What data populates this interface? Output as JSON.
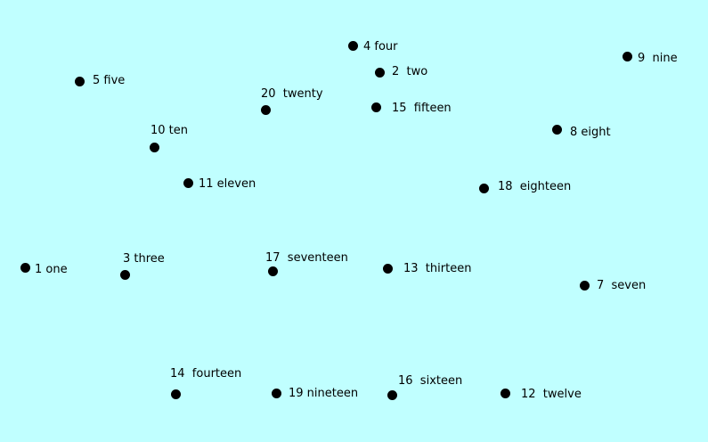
{
  "colors": {
    "background": "#c0ffff",
    "dot": "#000000",
    "text": "#000000"
  },
  "points": [
    {
      "id": "one",
      "label": "1 one"
    },
    {
      "id": "two",
      "label": "2  two"
    },
    {
      "id": "three",
      "label": "3 three"
    },
    {
      "id": "four",
      "label": "4 four"
    },
    {
      "id": "five",
      "label": "5 five"
    },
    {
      "id": "seven",
      "label": "7  seven"
    },
    {
      "id": "eight",
      "label": "8 eight"
    },
    {
      "id": "nine",
      "label": "9  nine"
    },
    {
      "id": "ten",
      "label": "10 ten"
    },
    {
      "id": "eleven",
      "label": "11 eleven"
    },
    {
      "id": "twelve",
      "label": "12  twelve"
    },
    {
      "id": "thirteen",
      "label": "13  thirteen"
    },
    {
      "id": "fourteen",
      "label": "14  fourteen"
    },
    {
      "id": "fifteen",
      "label": "15  fifteen"
    },
    {
      "id": "sixteen",
      "label": "16  sixteen"
    },
    {
      "id": "seventeen",
      "label": "17  seventeen"
    },
    {
      "id": "eighteen",
      "label": "18  eighteen"
    },
    {
      "id": "nineteen",
      "label": "19 nineteen"
    },
    {
      "id": "twenty",
      "label": "20  twenty"
    }
  ]
}
